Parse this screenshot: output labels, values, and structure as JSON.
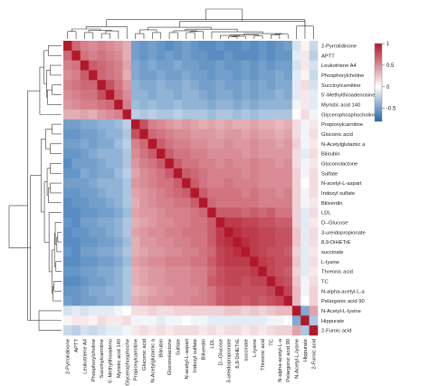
{
  "chart_data": {
    "type": "heatmap",
    "title": "",
    "labels": [
      "2-Pyrrolidinone",
      "APTT",
      "Leukotriene A4",
      "Phosphorylcholine",
      "Succinylcarnitine",
      "5'-Methylthioadenosine",
      "Myristic acid 140",
      "Glycerophosphocholine",
      "Propionylcarnitine",
      "Gluconic acid",
      "N-Acetylglutamic acid",
      "Bilirubin",
      "Gluconolactone",
      "Sulfate",
      "N-acetyl-L-aspartic acid",
      "Indoxyl sulfate",
      "Biliverdin",
      "LDL",
      "D-Glucose",
      "3-ureidopropionate",
      "8,9-DiHETrE",
      "succinate",
      "L-lysine",
      "Threonic acid",
      "TC",
      "N-alpha-acetyl-L-arginine",
      "Pelargonic acid 90",
      "N-Acetyl-L-lysine",
      "Hippurate",
      "2-Furoic acid"
    ],
    "row_labels": [
      "2-Pyrrolidinone",
      "APTT",
      "Leukotriene A4",
      "Phosphorylcholine",
      "Succinylcarnitine",
      "5'-Methylthioadenosine",
      "Myristic acid 140",
      "Glycerophosphocholine",
      "Propionylcarnitine",
      "Gluconic acid",
      "N-Acetylglutamic a",
      "Bilirubin",
      "Gluconolactone",
      "Sulfate",
      "N-acetyl-L-aspart",
      "Indoxyl sulfate",
      "Biliverdin",
      "LDL",
      "D--Glucose",
      "3-ureidopropionate",
      "8,9-DiHETrE",
      "succinate",
      "L-lysine",
      "Threonic acid",
      "TC",
      "N-alpha-acetyl-L-a",
      "Pelargonic acid 90",
      "N-Acetyl-L-lysine",
      "Hippurate",
      "2-Furoic acid"
    ],
    "col_labels": [
      "2-Pyrrolidinone",
      "APTT",
      "Leukotriene A4",
      "Phosphorylcholine",
      "Succinylcarnitine",
      "5'-Methylthioadeno",
      "Myristic acid 140",
      "Glycerophosphoche",
      "Propionylcarnitine",
      "Gluconic acid",
      "N-Acetylglutamic a",
      "Bilirubin",
      "Gluconolactone",
      "Sulfate",
      "N-acetyl-L-aspart",
      "Indoxyl sulfate",
      "Biliverdin",
      "LDL",
      "D--Glucose",
      "3-ureidopropionate",
      "8,9-DiHETrE",
      "succinate",
      "L-lysine",
      "Threonic acid",
      "TC",
      "N-alpha-acetyl-L-a",
      "Pelargonic acid 90",
      "N-Acetyl-L-lysine",
      "Hippurate",
      "2-Furoic acid"
    ],
    "values": [
      [
        1.0,
        0.65,
        0.55,
        0.5,
        0.55,
        0.5,
        0.45,
        0.35,
        -0.5,
        -0.55,
        -0.5,
        -0.55,
        -0.6,
        -0.55,
        -0.5,
        -0.55,
        -0.6,
        -0.6,
        -0.55,
        -0.6,
        -0.6,
        -0.55,
        -0.6,
        -0.55,
        -0.6,
        -0.55,
        -0.5,
        -0.15,
        0.05,
        -0.2
      ],
      [
        0.65,
        1.0,
        0.6,
        0.55,
        0.6,
        0.55,
        0.5,
        0.35,
        -0.5,
        -0.55,
        -0.5,
        -0.55,
        -0.5,
        -0.55,
        -0.5,
        -0.55,
        -0.55,
        -0.6,
        -0.6,
        -0.55,
        -0.6,
        -0.6,
        -0.6,
        -0.55,
        -0.6,
        -0.55,
        -0.55,
        -0.1,
        0.1,
        -0.25
      ],
      [
        0.55,
        0.6,
        1.0,
        0.7,
        0.65,
        0.6,
        0.55,
        0.4,
        -0.45,
        -0.5,
        -0.45,
        -0.5,
        -0.5,
        -0.45,
        -0.5,
        -0.5,
        -0.55,
        -0.55,
        -0.5,
        -0.55,
        -0.55,
        -0.5,
        -0.55,
        -0.5,
        -0.55,
        -0.5,
        -0.5,
        -0.15,
        0.1,
        -0.15
      ],
      [
        0.5,
        0.55,
        0.7,
        1.0,
        0.65,
        0.6,
        0.55,
        0.35,
        -0.45,
        -0.5,
        -0.5,
        -0.45,
        -0.5,
        -0.5,
        -0.45,
        -0.5,
        -0.5,
        -0.55,
        -0.5,
        -0.5,
        -0.55,
        -0.5,
        -0.55,
        -0.5,
        -0.5,
        -0.45,
        -0.5,
        -0.1,
        0.05,
        -0.2
      ],
      [
        0.55,
        0.6,
        0.65,
        0.65,
        1.0,
        0.75,
        0.6,
        0.45,
        -0.4,
        -0.45,
        -0.45,
        -0.4,
        -0.45,
        -0.45,
        -0.4,
        -0.45,
        -0.5,
        -0.5,
        -0.45,
        -0.5,
        -0.5,
        -0.45,
        -0.5,
        -0.45,
        -0.5,
        -0.45,
        -0.45,
        -0.1,
        0.15,
        -0.15
      ],
      [
        0.5,
        0.55,
        0.6,
        0.6,
        0.75,
        1.0,
        0.65,
        0.5,
        -0.4,
        -0.4,
        -0.45,
        -0.4,
        -0.4,
        -0.45,
        -0.4,
        -0.4,
        -0.45,
        -0.5,
        -0.45,
        -0.45,
        -0.5,
        -0.45,
        -0.5,
        -0.45,
        -0.45,
        -0.4,
        -0.45,
        -0.1,
        0.1,
        -0.1
      ],
      [
        0.45,
        0.5,
        0.55,
        0.55,
        0.6,
        0.65,
        1.0,
        0.55,
        -0.35,
        -0.4,
        -0.35,
        -0.4,
        -0.4,
        -0.35,
        -0.4,
        -0.4,
        -0.4,
        -0.45,
        -0.4,
        -0.4,
        -0.45,
        -0.4,
        -0.45,
        -0.4,
        -0.4,
        -0.4,
        -0.4,
        -0.05,
        0.1,
        -0.1
      ],
      [
        0.35,
        0.35,
        0.4,
        0.35,
        0.45,
        0.5,
        0.55,
        1.0,
        -0.25,
        -0.3,
        -0.25,
        -0.3,
        -0.3,
        -0.25,
        -0.3,
        -0.3,
        -0.3,
        -0.35,
        -0.3,
        -0.3,
        -0.35,
        -0.3,
        -0.35,
        -0.3,
        -0.3,
        -0.3,
        -0.3,
        0.0,
        0.15,
        -0.05
      ],
      [
        -0.5,
        -0.5,
        -0.45,
        -0.45,
        -0.4,
        -0.4,
        -0.35,
        -0.25,
        1.0,
        0.75,
        0.55,
        0.5,
        0.45,
        0.4,
        0.45,
        0.4,
        0.35,
        0.4,
        0.35,
        0.4,
        0.35,
        0.35,
        0.4,
        0.35,
        0.35,
        0.3,
        0.35,
        0.15,
        -0.05,
        0.1
      ],
      [
        -0.55,
        -0.55,
        -0.5,
        -0.5,
        -0.45,
        -0.4,
        -0.4,
        -0.3,
        0.75,
        1.0,
        0.65,
        0.6,
        0.55,
        0.5,
        0.5,
        0.45,
        0.45,
        0.45,
        0.4,
        0.45,
        0.45,
        0.4,
        0.45,
        0.4,
        0.4,
        0.35,
        0.4,
        0.15,
        -0.05,
        0.15
      ],
      [
        -0.5,
        -0.5,
        -0.45,
        -0.5,
        -0.45,
        -0.45,
        -0.35,
        -0.25,
        0.55,
        0.65,
        1.0,
        0.7,
        0.6,
        0.55,
        0.55,
        0.5,
        0.5,
        0.45,
        0.45,
        0.5,
        0.45,
        0.45,
        0.5,
        0.45,
        0.45,
        0.4,
        0.45,
        0.2,
        -0.05,
        0.1
      ],
      [
        -0.55,
        -0.55,
        -0.5,
        -0.45,
        -0.4,
        -0.4,
        -0.4,
        -0.3,
        0.5,
        0.6,
        0.7,
        1.0,
        0.7,
        0.6,
        0.6,
        0.55,
        0.55,
        0.5,
        0.5,
        0.5,
        0.5,
        0.45,
        0.5,
        0.45,
        0.45,
        0.45,
        0.45,
        0.15,
        -0.1,
        0.15
      ],
      [
        -0.6,
        -0.5,
        -0.5,
        -0.5,
        -0.45,
        -0.4,
        -0.4,
        -0.3,
        0.45,
        0.55,
        0.6,
        0.7,
        1.0,
        0.7,
        0.6,
        0.6,
        0.55,
        0.55,
        0.5,
        0.55,
        0.5,
        0.5,
        0.55,
        0.5,
        0.5,
        0.45,
        0.5,
        0.15,
        -0.05,
        0.1
      ],
      [
        -0.55,
        -0.55,
        -0.45,
        -0.5,
        -0.45,
        -0.45,
        -0.35,
        -0.25,
        0.4,
        0.5,
        0.55,
        0.6,
        0.7,
        1.0,
        0.7,
        0.65,
        0.6,
        0.55,
        0.55,
        0.55,
        0.55,
        0.5,
        0.55,
        0.5,
        0.5,
        0.5,
        0.5,
        0.2,
        -0.05,
        0.15
      ],
      [
        -0.5,
        -0.5,
        -0.5,
        -0.45,
        -0.4,
        -0.4,
        -0.4,
        -0.3,
        0.45,
        0.5,
        0.55,
        0.6,
        0.6,
        0.7,
        1.0,
        0.7,
        0.6,
        0.55,
        0.55,
        0.6,
        0.55,
        0.55,
        0.55,
        0.5,
        0.5,
        0.5,
        0.5,
        0.2,
        0.0,
        0.15
      ],
      [
        -0.55,
        -0.55,
        -0.5,
        -0.5,
        -0.45,
        -0.4,
        -0.4,
        -0.3,
        0.4,
        0.45,
        0.5,
        0.55,
        0.6,
        0.65,
        0.7,
        1.0,
        0.7,
        0.6,
        0.6,
        0.6,
        0.6,
        0.55,
        0.6,
        0.55,
        0.55,
        0.5,
        0.55,
        0.2,
        -0.05,
        0.15
      ],
      [
        -0.6,
        -0.55,
        -0.55,
        -0.5,
        -0.5,
        -0.45,
        -0.4,
        -0.3,
        0.35,
        0.45,
        0.5,
        0.55,
        0.55,
        0.6,
        0.6,
        0.7,
        1.0,
        0.65,
        0.6,
        0.6,
        0.6,
        0.6,
        0.6,
        0.55,
        0.55,
        0.55,
        0.55,
        0.2,
        -0.05,
        0.1
      ],
      [
        -0.6,
        -0.6,
        -0.55,
        -0.55,
        -0.5,
        -0.5,
        -0.45,
        -0.35,
        0.4,
        0.45,
        0.45,
        0.5,
        0.55,
        0.55,
        0.55,
        0.6,
        0.65,
        1.0,
        0.7,
        0.7,
        0.7,
        0.65,
        0.7,
        0.65,
        0.7,
        0.6,
        0.6,
        0.2,
        -0.1,
        0.15
      ],
      [
        -0.55,
        -0.6,
        -0.5,
        -0.5,
        -0.45,
        -0.45,
        -0.4,
        -0.3,
        0.35,
        0.4,
        0.45,
        0.5,
        0.5,
        0.55,
        0.55,
        0.6,
        0.6,
        0.7,
        1.0,
        0.85,
        0.85,
        0.8,
        0.8,
        0.75,
        0.75,
        0.7,
        0.7,
        0.2,
        -0.1,
        0.1
      ],
      [
        -0.6,
        -0.55,
        -0.55,
        -0.5,
        -0.5,
        -0.45,
        -0.4,
        -0.3,
        0.4,
        0.45,
        0.5,
        0.5,
        0.55,
        0.55,
        0.6,
        0.6,
        0.6,
        0.7,
        0.85,
        1.0,
        0.9,
        0.85,
        0.85,
        0.8,
        0.8,
        0.75,
        0.75,
        0.25,
        -0.1,
        0.15
      ],
      [
        -0.6,
        -0.6,
        -0.55,
        -0.55,
        -0.5,
        -0.5,
        -0.45,
        -0.35,
        0.35,
        0.45,
        0.45,
        0.5,
        0.5,
        0.55,
        0.55,
        0.6,
        0.6,
        0.7,
        0.85,
        0.9,
        1.0,
        0.9,
        0.85,
        0.8,
        0.8,
        0.75,
        0.75,
        0.25,
        -0.1,
        0.15
      ],
      [
        -0.55,
        -0.6,
        -0.5,
        -0.5,
        -0.45,
        -0.45,
        -0.4,
        -0.3,
        0.35,
        0.4,
        0.45,
        0.45,
        0.5,
        0.5,
        0.55,
        0.55,
        0.6,
        0.65,
        0.8,
        0.85,
        0.9,
        1.0,
        0.85,
        0.8,
        0.75,
        0.75,
        0.7,
        0.2,
        -0.1,
        0.1
      ],
      [
        -0.6,
        -0.6,
        -0.55,
        -0.55,
        -0.5,
        -0.5,
        -0.45,
        -0.35,
        0.4,
        0.45,
        0.5,
        0.5,
        0.55,
        0.55,
        0.55,
        0.6,
        0.6,
        0.7,
        0.8,
        0.85,
        0.85,
        0.85,
        1.0,
        0.85,
        0.8,
        0.75,
        0.75,
        0.25,
        -0.1,
        0.15
      ],
      [
        -0.55,
        -0.55,
        -0.5,
        -0.5,
        -0.45,
        -0.45,
        -0.4,
        -0.3,
        0.35,
        0.4,
        0.45,
        0.45,
        0.5,
        0.5,
        0.5,
        0.55,
        0.55,
        0.65,
        0.75,
        0.8,
        0.8,
        0.8,
        0.85,
        1.0,
        0.8,
        0.75,
        0.7,
        0.2,
        -0.1,
        0.1
      ],
      [
        -0.6,
        -0.6,
        -0.55,
        -0.5,
        -0.5,
        -0.45,
        -0.4,
        -0.3,
        0.35,
        0.4,
        0.45,
        0.45,
        0.5,
        0.5,
        0.5,
        0.55,
        0.55,
        0.7,
        0.75,
        0.8,
        0.8,
        0.75,
        0.8,
        0.8,
        1.0,
        0.8,
        0.75,
        0.25,
        -0.05,
        0.15
      ],
      [
        -0.55,
        -0.55,
        -0.5,
        -0.45,
        -0.45,
        -0.4,
        -0.4,
        -0.3,
        0.3,
        0.35,
        0.4,
        0.45,
        0.45,
        0.5,
        0.5,
        0.5,
        0.55,
        0.6,
        0.7,
        0.75,
        0.75,
        0.75,
        0.75,
        0.75,
        0.8,
        1.0,
        0.8,
        0.3,
        -0.05,
        0.2
      ],
      [
        -0.5,
        -0.55,
        -0.5,
        -0.5,
        -0.45,
        -0.45,
        -0.4,
        -0.3,
        0.35,
        0.4,
        0.45,
        0.45,
        0.5,
        0.5,
        0.5,
        0.55,
        0.55,
        0.6,
        0.7,
        0.75,
        0.75,
        0.7,
        0.75,
        0.7,
        0.75,
        0.8,
        1.0,
        0.3,
        0.0,
        0.2
      ],
      [
        -0.15,
        -0.1,
        -0.15,
        -0.1,
        -0.1,
        -0.1,
        -0.05,
        0.0,
        0.15,
        0.15,
        0.2,
        0.15,
        0.15,
        0.2,
        0.2,
        0.2,
        0.2,
        0.2,
        0.2,
        0.25,
        0.25,
        0.2,
        0.25,
        0.2,
        0.25,
        0.3,
        0.3,
        1.0,
        -0.45,
        0.4
      ],
      [
        0.05,
        0.1,
        0.1,
        0.05,
        0.15,
        0.1,
        0.1,
        0.15,
        -0.05,
        -0.05,
        -0.05,
        -0.1,
        -0.05,
        -0.05,
        0.0,
        -0.05,
        -0.05,
        -0.1,
        -0.1,
        -0.1,
        -0.1,
        -0.1,
        -0.1,
        -0.1,
        -0.05,
        -0.05,
        0.0,
        -0.45,
        1.0,
        -0.3
      ],
      [
        -0.2,
        -0.25,
        -0.15,
        -0.2,
        -0.15,
        -0.1,
        -0.1,
        -0.05,
        0.1,
        0.15,
        0.1,
        0.15,
        0.1,
        0.15,
        0.15,
        0.15,
        0.1,
        0.15,
        0.1,
        0.15,
        0.15,
        0.1,
        0.15,
        0.1,
        0.15,
        0.2,
        0.2,
        0.4,
        -0.3,
        1.0
      ]
    ],
    "color_scale": {
      "min": -0.8,
      "max": 1.0,
      "low_color": "#2166ac",
      "mid_color": "#ffffff",
      "high_color": "#b2182b",
      "ticks": [
        1,
        0.5,
        0,
        -0.5
      ],
      "tick_labels": [
        "1",
        "0.5",
        "0",
        "-0.5"
      ]
    },
    "legend_position": "top-right",
    "grid": false
  }
}
